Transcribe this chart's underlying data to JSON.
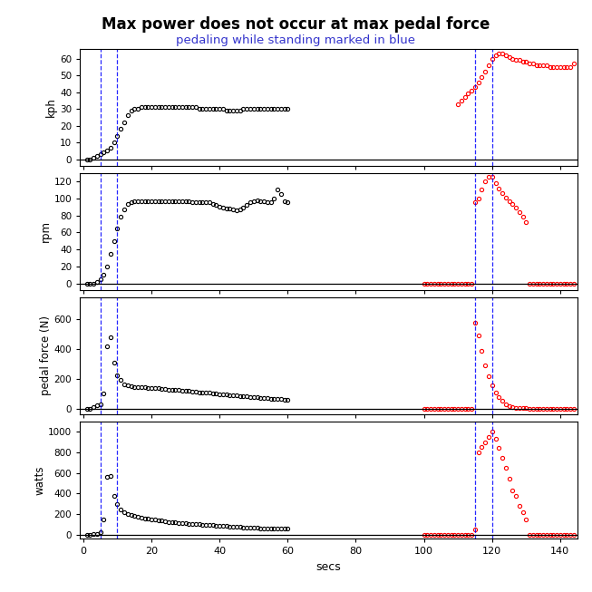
{
  "title": "Max power does not occur at max pedal force",
  "subtitle": "pedaling while standing marked in blue",
  "subtitle_color": "#3333cc",
  "xlabel": "secs",
  "xlim": [
    -1,
    145
  ],
  "xticks": [
    0,
    20,
    40,
    60,
    80,
    100,
    120,
    140
  ],
  "vlines_blue": [
    5,
    10,
    115,
    120
  ],
  "panel_labels": [
    "kph",
    "rpm",
    "pedal force (N)",
    "watts"
  ],
  "kph_ylim": [
    -4,
    66
  ],
  "kph_yticks": [
    0,
    10,
    20,
    30,
    40,
    50,
    60
  ],
  "kph_black_x": [
    1,
    2,
    3,
    4,
    5,
    6,
    7,
    8,
    9,
    10,
    11,
    12,
    13,
    14,
    15,
    16,
    17,
    18,
    19,
    20,
    21,
    22,
    23,
    24,
    25,
    26,
    27,
    28,
    29,
    30,
    31,
    32,
    33,
    34,
    35,
    36,
    37,
    38,
    39,
    40,
    41,
    42,
    43,
    44,
    45,
    46,
    47,
    48,
    49,
    50,
    51,
    52,
    53,
    54,
    55,
    56,
    57,
    58,
    59,
    60
  ],
  "kph_black_y": [
    0,
    0,
    1,
    2,
    3,
    4,
    5,
    7,
    10,
    14,
    18,
    22,
    26,
    29,
    30,
    30,
    31,
    31,
    31,
    31,
    31,
    31,
    31,
    31,
    31,
    31,
    31,
    31,
    31,
    31,
    31,
    31,
    31,
    30,
    30,
    30,
    30,
    30,
    30,
    30,
    30,
    29,
    29,
    29,
    29,
    29,
    30,
    30,
    30,
    30,
    30,
    30,
    30,
    30,
    30,
    30,
    30,
    30,
    30,
    30
  ],
  "kph_red_x": [
    110,
    111,
    112,
    113,
    114,
    115,
    116,
    117,
    118,
    119,
    120,
    121,
    122,
    123,
    124,
    125,
    126,
    127,
    128,
    129,
    130,
    131,
    132,
    133,
    134,
    135,
    136,
    137,
    138,
    139,
    140,
    141,
    142,
    143,
    144
  ],
  "kph_red_y": [
    33,
    35,
    37,
    39,
    41,
    43,
    46,
    49,
    52,
    56,
    60,
    62,
    63,
    63,
    62,
    61,
    60,
    59,
    59,
    58,
    58,
    57,
    57,
    56,
    56,
    56,
    56,
    55,
    55,
    55,
    55,
    55,
    55,
    55,
    57
  ],
  "rpm_ylim": [
    -8,
    130
  ],
  "rpm_yticks": [
    0,
    20,
    40,
    60,
    80,
    100,
    120
  ],
  "rpm_black_x": [
    1,
    2,
    3,
    4,
    5,
    6,
    7,
    8,
    9,
    10,
    11,
    12,
    13,
    14,
    15,
    16,
    17,
    18,
    19,
    20,
    21,
    22,
    23,
    24,
    25,
    26,
    27,
    28,
    29,
    30,
    31,
    32,
    33,
    34,
    35,
    36,
    37,
    38,
    39,
    40,
    41,
    42,
    43,
    44,
    45,
    46,
    47,
    48,
    49,
    50,
    51,
    52,
    53,
    54,
    55,
    56,
    57,
    58,
    59,
    60
  ],
  "rpm_black_y": [
    0,
    0,
    0,
    2,
    5,
    10,
    20,
    35,
    50,
    65,
    78,
    87,
    93,
    96,
    97,
    97,
    97,
    97,
    97,
    97,
    97,
    97,
    97,
    97,
    97,
    97,
    97,
    97,
    97,
    97,
    97,
    96,
    96,
    96,
    96,
    95,
    95,
    93,
    92,
    90,
    89,
    88,
    88,
    87,
    86,
    87,
    89,
    92,
    95,
    97,
    98,
    97,
    97,
    96,
    95,
    100,
    110,
    105,
    97,
    96
  ],
  "rpm_red_standing_x": [
    115,
    116,
    117,
    118,
    119,
    120,
    121,
    122,
    123,
    124,
    125,
    126,
    127,
    128,
    129,
    130
  ],
  "rpm_red_standing_y": [
    95,
    100,
    110,
    120,
    125,
    125,
    118,
    112,
    106,
    101,
    97,
    93,
    89,
    84,
    78,
    72
  ],
  "rpm_red_zero_x": [
    100,
    101,
    102,
    103,
    104,
    105,
    106,
    107,
    108,
    109,
    110,
    111,
    112,
    113,
    114,
    131,
    132,
    133,
    134,
    135,
    136,
    137,
    138,
    139,
    140,
    141,
    142,
    143,
    144
  ],
  "rpm_red_zero_y": [
    0,
    0,
    0,
    0,
    0,
    0,
    0,
    0,
    0,
    0,
    0,
    0,
    0,
    0,
    0,
    0,
    0,
    0,
    0,
    0,
    0,
    0,
    0,
    0,
    0,
    0,
    0,
    0,
    0
  ],
  "pedal_ylim": [
    -40,
    750
  ],
  "pedal_yticks": [
    0,
    200,
    400,
    600
  ],
  "pedal_black_x": [
    1,
    2,
    3,
    4,
    5,
    6,
    7,
    8,
    9,
    10,
    11,
    12,
    13,
    14,
    15,
    16,
    17,
    18,
    19,
    20,
    21,
    22,
    23,
    24,
    25,
    26,
    27,
    28,
    29,
    30,
    31,
    32,
    33,
    34,
    35,
    36,
    37,
    38,
    39,
    40,
    41,
    42,
    43,
    44,
    45,
    46,
    47,
    48,
    49,
    50,
    51,
    52,
    53,
    54,
    55,
    56,
    57,
    58,
    59,
    60
  ],
  "pedal_black_y": [
    0,
    0,
    10,
    20,
    25,
    100,
    420,
    480,
    310,
    225,
    190,
    165,
    155,
    150,
    145,
    145,
    143,
    142,
    140,
    138,
    137,
    135,
    133,
    130,
    128,
    127,
    125,
    123,
    120,
    118,
    117,
    115,
    113,
    110,
    108,
    107,
    105,
    103,
    100,
    97,
    95,
    93,
    90,
    88,
    86,
    83,
    82,
    80,
    78,
    76,
    74,
    72,
    70,
    68,
    66,
    63,
    63,
    62,
    61,
    60
  ],
  "pedal_red_standing_x": [
    115,
    116,
    117,
    118,
    119,
    120,
    121,
    122,
    123,
    124,
    125,
    126,
    127,
    128,
    129,
    130
  ],
  "pedal_red_standing_y": [
    580,
    490,
    390,
    290,
    215,
    155,
    110,
    75,
    50,
    25,
    15,
    10,
    5,
    5,
    5,
    5
  ],
  "pedal_red_zero_x": [
    100,
    101,
    102,
    103,
    104,
    105,
    106,
    107,
    108,
    109,
    110,
    111,
    112,
    113,
    114,
    131,
    132,
    133,
    134,
    135,
    136,
    137,
    138,
    139,
    140,
    141,
    142,
    143,
    144
  ],
  "pedal_red_zero_y": [
    0,
    0,
    0,
    0,
    0,
    0,
    0,
    0,
    0,
    0,
    0,
    0,
    0,
    0,
    0,
    0,
    0,
    0,
    0,
    0,
    0,
    0,
    0,
    0,
    0,
    0,
    0,
    0,
    0
  ],
  "watts_ylim": [
    -40,
    1100
  ],
  "watts_yticks": [
    0,
    200,
    400,
    600,
    800,
    1000
  ],
  "watts_black_x": [
    1,
    2,
    3,
    4,
    5,
    6,
    7,
    8,
    9,
    10,
    11,
    12,
    13,
    14,
    15,
    16,
    17,
    18,
    19,
    20,
    21,
    22,
    23,
    24,
    25,
    26,
    27,
    28,
    29,
    30,
    31,
    32,
    33,
    34,
    35,
    36,
    37,
    38,
    39,
    40,
    41,
    42,
    43,
    44,
    45,
    46,
    47,
    48,
    49,
    50,
    51,
    52,
    53,
    54,
    55,
    56,
    57,
    58,
    59,
    60
  ],
  "watts_black_y": [
    0,
    0,
    5,
    10,
    20,
    150,
    560,
    570,
    380,
    300,
    245,
    220,
    200,
    190,
    180,
    175,
    165,
    160,
    155,
    150,
    145,
    140,
    135,
    130,
    125,
    120,
    118,
    115,
    112,
    110,
    107,
    105,
    103,
    100,
    97,
    95,
    93,
    90,
    88,
    86,
    83,
    82,
    80,
    78,
    76,
    74,
    72,
    70,
    68,
    66,
    65,
    63,
    62,
    60,
    58,
    57,
    57,
    56,
    55,
    55
  ],
  "watts_red_standing_x": [
    115,
    116,
    117,
    118,
    119,
    120,
    121,
    122,
    123,
    124,
    125,
    126,
    127,
    128,
    129,
    130
  ],
  "watts_red_standing_y": [
    50,
    800,
    850,
    900,
    950,
    1000,
    930,
    840,
    750,
    650,
    540,
    430,
    380,
    280,
    220,
    150
  ],
  "watts_red_zero_x": [
    100,
    101,
    102,
    103,
    104,
    105,
    106,
    107,
    108,
    109,
    110,
    111,
    112,
    113,
    114,
    131,
    132,
    133,
    134,
    135,
    136,
    137,
    138,
    139,
    140,
    141,
    142,
    143,
    144
  ],
  "watts_red_zero_y": [
    0,
    0,
    0,
    0,
    0,
    0,
    0,
    0,
    0,
    0,
    0,
    0,
    0,
    0,
    0,
    0,
    0,
    0,
    0,
    0,
    0,
    0,
    0,
    0,
    0,
    0,
    0,
    0,
    0
  ]
}
